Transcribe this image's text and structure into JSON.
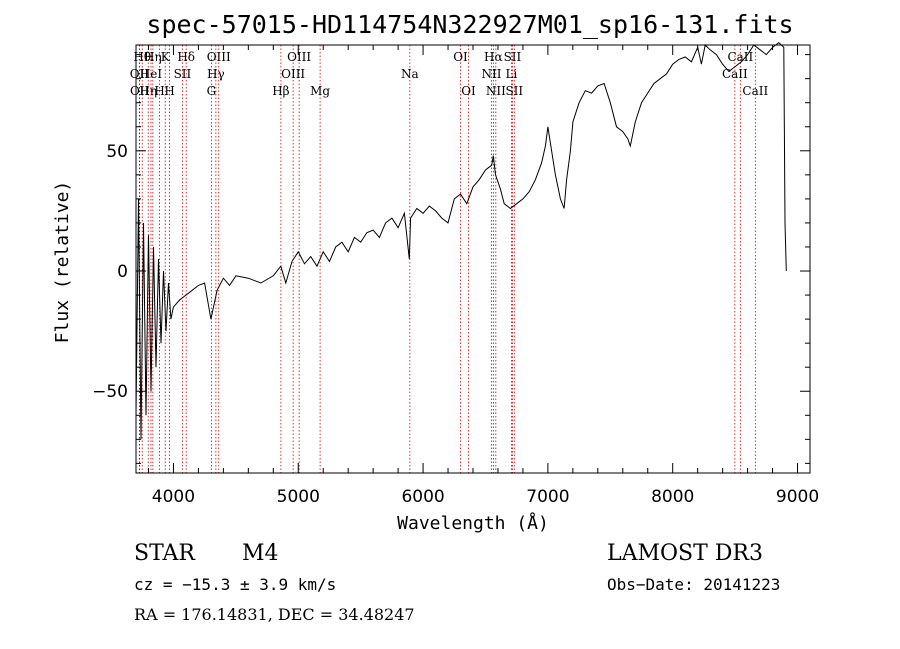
{
  "chart_data": {
    "type": "line",
    "title": "spec-57015-HD114754N322927M01_sp16-131.fits",
    "xlabel": "Wavelength (Å)",
    "ylabel": "Flux (relative)",
    "xlim": [
      3700,
      9100
    ],
    "ylim": [
      -84,
      94
    ],
    "xticks": [
      4000,
      5000,
      6000,
      7000,
      8000,
      9000
    ],
    "xtick_labels": [
      "4000",
      "5000",
      "6000",
      "7000",
      "8000",
      "9000"
    ],
    "yticks": [
      -50,
      0,
      50
    ],
    "ytick_labels": [
      "−50",
      "0",
      "50"
    ],
    "series": [
      {
        "name": "flux",
        "x": [
          3700,
          3720,
          3740,
          3760,
          3780,
          3800,
          3820,
          3840,
          3860,
          3880,
          3900,
          3920,
          3940,
          3960,
          3980,
          4000,
          4050,
          4100,
          4150,
          4200,
          4250,
          4300,
          4350,
          4400,
          4450,
          4500,
          4600,
          4700,
          4800,
          4860,
          4900,
          4950,
          5000,
          5050,
          5100,
          5150,
          5200,
          5250,
          5300,
          5350,
          5400,
          5450,
          5500,
          5550,
          5600,
          5650,
          5700,
          5750,
          5800,
          5850,
          5890,
          5900,
          5950,
          6000,
          6050,
          6100,
          6150,
          6200,
          6250,
          6300,
          6350,
          6400,
          6450,
          6500,
          6550,
          6563,
          6580,
          6620,
          6650,
          6700,
          6750,
          6800,
          6850,
          6900,
          6950,
          6980,
          7000,
          7030,
          7060,
          7100,
          7130,
          7150,
          7180,
          7200,
          7250,
          7300,
          7350,
          7400,
          7450,
          7500,
          7550,
          7600,
          7640,
          7660,
          7680,
          7700,
          7750,
          7800,
          7850,
          7900,
          7950,
          8000,
          8050,
          8100,
          8150,
          8200,
          8230,
          8260,
          8300,
          8350,
          8400,
          8450,
          8500,
          8550,
          8600,
          8650,
          8700,
          8750,
          8800,
          8850,
          8890,
          8900,
          8910
        ],
        "y": [
          -60,
          30,
          -70,
          20,
          -60,
          15,
          -50,
          10,
          -40,
          5,
          -30,
          0,
          -25,
          -5,
          -20,
          -15,
          -12,
          -10,
          -8,
          -6,
          -5,
          -20,
          -8,
          -3,
          -6,
          -2,
          -3,
          -5,
          -2,
          2,
          -5,
          4,
          8,
          3,
          6,
          2,
          8,
          4,
          10,
          12,
          8,
          14,
          12,
          16,
          17,
          14,
          20,
          22,
          18,
          24,
          5,
          22,
          26,
          24,
          27,
          25,
          22,
          20,
          30,
          32,
          28,
          35,
          38,
          42,
          44,
          48,
          40,
          34,
          28,
          26,
          28,
          30,
          33,
          38,
          45,
          52,
          60,
          50,
          40,
          30,
          26,
          38,
          50,
          62,
          70,
          75,
          74,
          77,
          78,
          70,
          60,
          58,
          55,
          52,
          57,
          62,
          70,
          74,
          78,
          80,
          82,
          86,
          88,
          89,
          87,
          93,
          86,
          94,
          92,
          90,
          86,
          83,
          85,
          87,
          90,
          94,
          92,
          90,
          93,
          95,
          93,
          20,
          0
        ]
      }
    ],
    "line_labels": [
      {
        "x": 3727,
        "name": "OII",
        "row": 2
      },
      {
        "x": 3729,
        "name": "OII",
        "row": 3
      },
      {
        "x": 3750,
        "name": "Hθ",
        "row": 1
      },
      {
        "x": 3798,
        "name": "Hη",
        "row": 3
      },
      {
        "x": 3820,
        "name": "HeI",
        "row": 2
      },
      {
        "x": 3835,
        "name": "Hη",
        "row": 1
      },
      {
        "x": 3889,
        "name": "H",
        "row": 3
      },
      {
        "x": 3934,
        "name": "K",
        "row": 1
      },
      {
        "x": 3969,
        "name": "H",
        "row": 3
      },
      {
        "x": 4072,
        "name": "SII",
        "row": 2
      },
      {
        "x": 4102,
        "name": "Hδ",
        "row": 1
      },
      {
        "x": 4304,
        "name": "G",
        "row": 3
      },
      {
        "x": 4340,
        "name": "Hγ",
        "row": 2
      },
      {
        "x": 4363,
        "name": "OIII",
        "row": 1
      },
      {
        "x": 4861,
        "name": "Hβ",
        "row": 3
      },
      {
        "x": 4959,
        "name": "OIII",
        "row": 2
      },
      {
        "x": 5007,
        "name": "OIII",
        "row": 1
      },
      {
        "x": 5175,
        "name": "Mg",
        "row": 3
      },
      {
        "x": 5894,
        "name": "Na",
        "row": 2
      },
      {
        "x": 6300,
        "name": "OI",
        "row": 1
      },
      {
        "x": 6364,
        "name": "OI",
        "row": 3
      },
      {
        "x": 6548,
        "name": "NII",
        "row": 2
      },
      {
        "x": 6563,
        "name": "Hα",
        "row": 1
      },
      {
        "x": 6583,
        "name": "NII",
        "row": 3
      },
      {
        "x": 6708,
        "name": "Li",
        "row": 2
      },
      {
        "x": 6716,
        "name": "SII",
        "row": 1
      },
      {
        "x": 6731,
        "name": "SII",
        "row": 3
      },
      {
        "x": 8498,
        "name": "CaII",
        "row": 2
      },
      {
        "x": 8542,
        "name": "CaII",
        "row": 1
      },
      {
        "x": 8662,
        "name": "CaII",
        "row": 3
      }
    ]
  },
  "info": {
    "object_type": "STAR",
    "subclass": "M4",
    "survey": "LAMOST DR3",
    "cz": "cz = −15.3 ± 3.9 km/s",
    "obs_date": "Obs−Date: 20141223",
    "coords": "RA = 176.14831, DEC =  34.48247"
  },
  "colors": {
    "line_marker": "#cc0000",
    "spectrum": "#000000"
  }
}
